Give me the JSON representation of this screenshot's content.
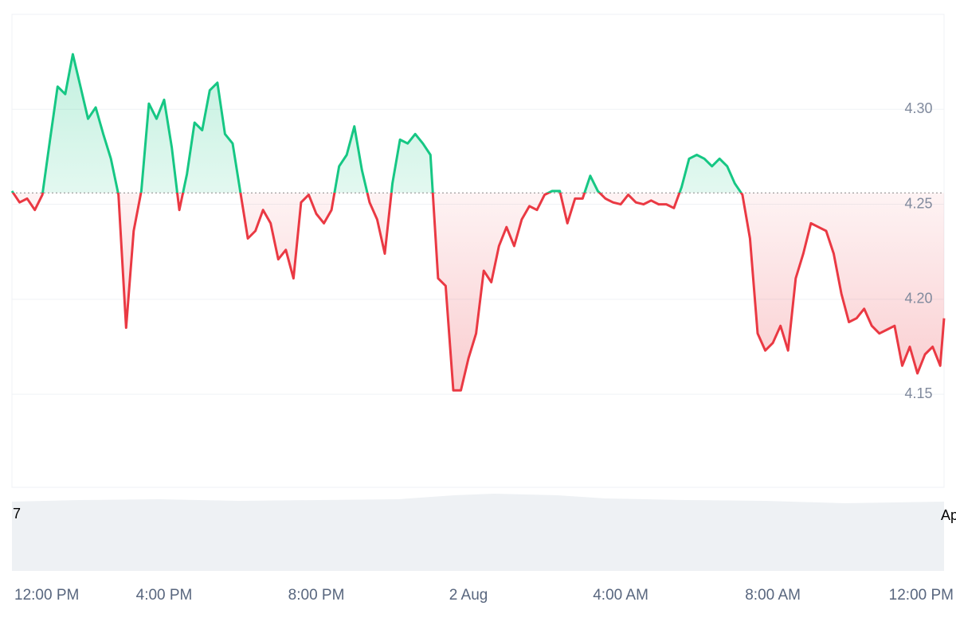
{
  "chart_data": {
    "type": "baseline-area",
    "x": [
      0,
      0.2,
      0.4,
      0.6,
      0.8,
      1,
      1.2,
      1.4,
      1.6,
      1.8,
      2,
      2.2,
      2.4,
      2.6,
      2.8,
      3,
      3.2,
      3.4,
      3.6,
      3.8,
      4,
      4.2,
      4.4,
      4.6,
      4.8,
      5,
      5.2,
      5.4,
      5.6,
      5.8,
      6,
      6.2,
      6.4,
      6.6,
      6.8,
      7,
      7.2,
      7.4,
      7.6,
      7.8,
      8,
      8.2,
      8.4,
      8.6,
      8.8,
      9,
      9.2,
      9.4,
      9.6,
      9.8,
      10,
      10.2,
      10.4,
      10.6,
      10.8,
      11,
      11.2,
      11.4,
      11.6,
      11.8,
      12,
      12.2,
      12.4,
      12.6,
      12.8,
      13,
      13.2,
      13.4,
      13.6,
      13.8,
      14,
      14.2,
      14.4,
      14.6,
      14.8,
      15,
      15.2,
      15.4,
      15.6,
      15.8,
      16,
      16.2,
      16.4,
      16.6,
      16.8,
      17,
      17.2,
      17.4,
      17.6,
      17.8,
      18,
      18.2,
      18.4,
      18.6,
      18.8,
      19,
      19.2,
      19.4,
      19.6,
      19.8,
      20,
      20.2,
      20.4,
      20.6,
      20.8,
      21,
      21.2,
      21.4,
      21.6,
      21.8,
      22,
      22.2,
      22.4,
      22.6,
      22.8,
      23,
      23.2,
      23.4,
      23.6,
      23.8,
      24,
      24.2,
      24.4,
      24.5
    ],
    "values": [
      4.257,
      4.251,
      4.253,
      4.247,
      4.255,
      4.284,
      4.312,
      4.308,
      4.329,
      4.312,
      4.295,
      4.301,
      4.287,
      4.274,
      4.255,
      4.185,
      4.236,
      4.257,
      4.303,
      4.295,
      4.305,
      4.28,
      4.247,
      4.266,
      4.293,
      4.289,
      4.31,
      4.314,
      4.287,
      4.282,
      4.257,
      4.232,
      4.236,
      4.247,
      4.24,
      4.221,
      4.226,
      4.211,
      4.251,
      4.255,
      4.245,
      4.24,
      4.247,
      4.27,
      4.276,
      4.291,
      4.268,
      4.251,
      4.242,
      4.224,
      4.261,
      4.284,
      4.282,
      4.287,
      4.282,
      4.276,
      4.211,
      4.207,
      4.152,
      4.152,
      4.169,
      4.182,
      4.215,
      4.209,
      4.228,
      4.238,
      4.228,
      4.242,
      4.249,
      4.247,
      4.255,
      4.257,
      4.257,
      4.24,
      4.253,
      4.253,
      4.265,
      4.257,
      4.253,
      4.251,
      4.25,
      4.255,
      4.251,
      4.25,
      4.252,
      4.25,
      4.25,
      4.248,
      4.259,
      4.274,
      4.276,
      4.274,
      4.27,
      4.274,
      4.27,
      4.261,
      4.255,
      4.232,
      4.182,
      4.173,
      4.177,
      4.186,
      4.173,
      4.211,
      4.224,
      4.24,
      4.238,
      4.236,
      4.224,
      4.203,
      4.188,
      4.19,
      4.195,
      4.186,
      4.182,
      4.184,
      4.186,
      4.165,
      4.175,
      4.161,
      4.171,
      4.175,
      4.165,
      4.19
    ],
    "baseline": 4.256,
    "up_color": "#16c784",
    "down_color": "#ea3943",
    "xlim": [
      0,
      24.5
    ],
    "ylim": [
      4.101,
      4.35
    ],
    "yticks": [
      {
        "value": 4.15,
        "label": "4.15"
      },
      {
        "value": 4.2,
        "label": "4.20"
      },
      {
        "value": 4.25,
        "label": "4.25"
      },
      {
        "value": 4.3,
        "label": "4.30"
      }
    ],
    "xticks": [
      {
        "value": 0,
        "label": "12:00 PM"
      },
      {
        "value": 4,
        "label": "4:00 PM"
      },
      {
        "value": 8,
        "label": "8:00 PM"
      },
      {
        "value": 12,
        "label": "2 Aug"
      },
      {
        "value": 16,
        "label": "4:00 AM"
      },
      {
        "value": 20,
        "label": "8:00 AM"
      },
      {
        "value": 24,
        "label": "12:00 PM"
      }
    ],
    "edge_labels": [
      "7",
      "Ap"
    ],
    "grid": true
  }
}
